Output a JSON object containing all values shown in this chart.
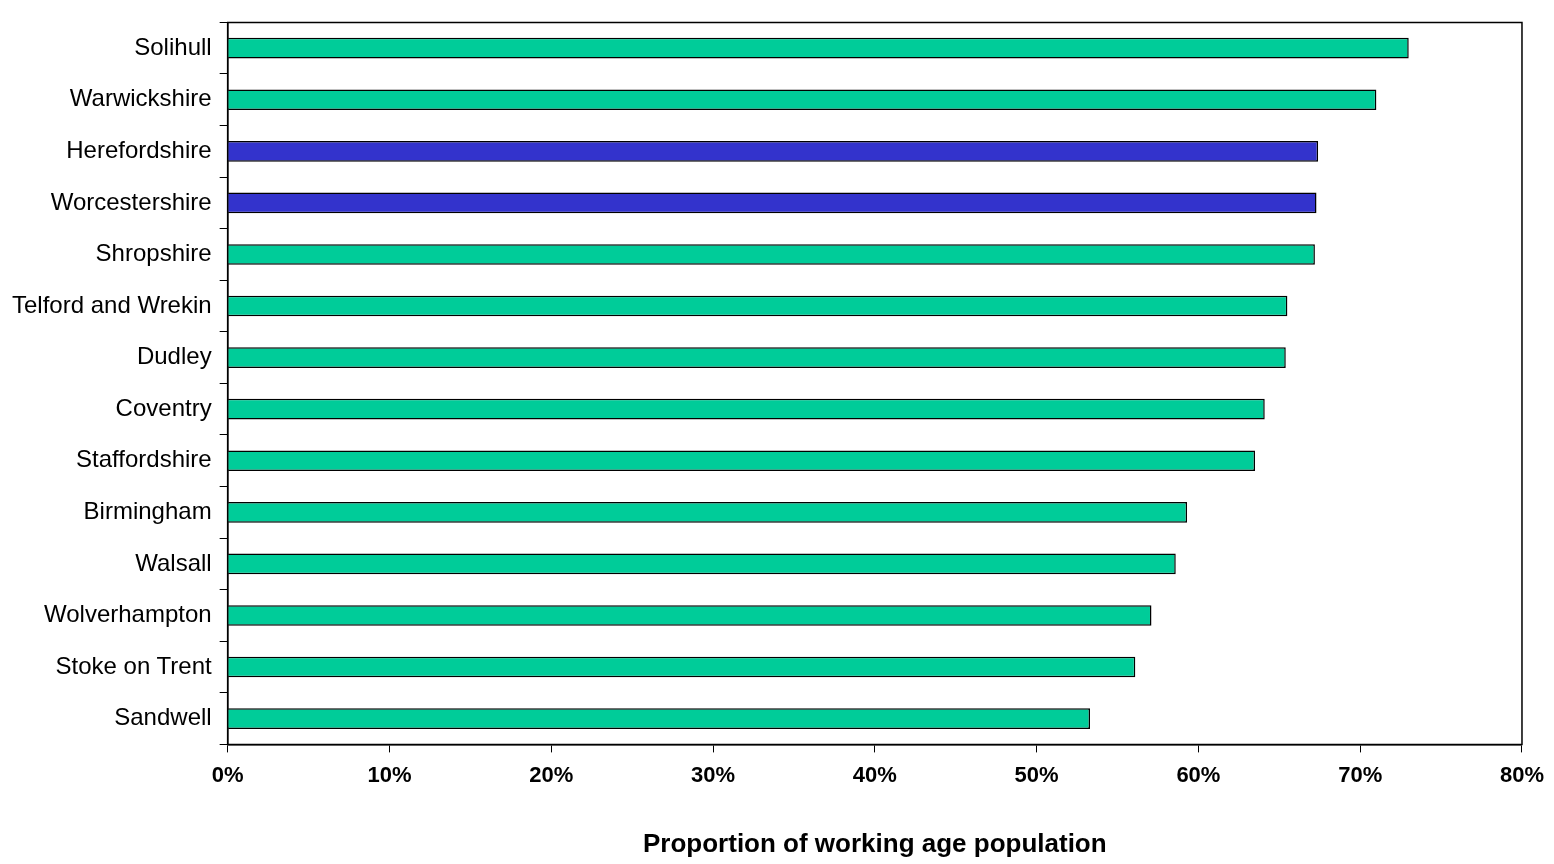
{
  "chart_data": {
    "type": "bar",
    "orientation": "horizontal",
    "xlabel": "Proportion of working age population",
    "categories": [
      "Solihull",
      "Warwickshire",
      "Herefordshire",
      "Worcestershire",
      "Shropshire",
      "Telford and Wrekin",
      "Dudley",
      "Coventry",
      "Staffordshire",
      "Birmingham",
      "Walsall",
      "Wolverhampton",
      "Stoke on Trent",
      "Sandwell"
    ],
    "values": [
      73.0,
      71.0,
      67.4,
      67.3,
      67.2,
      65.5,
      65.4,
      64.1,
      63.5,
      59.3,
      58.6,
      57.1,
      56.1,
      53.3
    ],
    "colors": [
      "#00cc99",
      "#00cc99",
      "#3333cc",
      "#3333cc",
      "#00cc99",
      "#00cc99",
      "#00cc99",
      "#00cc99",
      "#00cc99",
      "#00cc99",
      "#00cc99",
      "#00cc99",
      "#00cc99",
      "#00cc99"
    ],
    "xlim": [
      0,
      80
    ],
    "xticks": [
      {
        "value": 0,
        "label": "0%"
      },
      {
        "value": 10,
        "label": "10%"
      },
      {
        "value": 20,
        "label": "20%"
      },
      {
        "value": 30,
        "label": "30%"
      },
      {
        "value": 40,
        "label": "40%"
      },
      {
        "value": 50,
        "label": "50%"
      },
      {
        "value": 60,
        "label": "60%"
      },
      {
        "value": 70,
        "label": "70%"
      },
      {
        "value": 80,
        "label": "80%"
      }
    ],
    "grid": false,
    "legend": false
  }
}
